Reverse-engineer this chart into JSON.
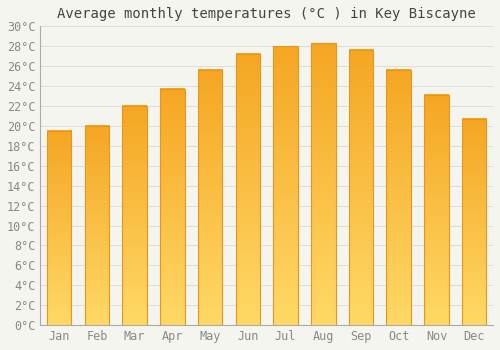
{
  "title": "Average monthly temperatures (°C ) in Key Biscayne",
  "months": [
    "Jan",
    "Feb",
    "Mar",
    "Apr",
    "May",
    "Jun",
    "Jul",
    "Aug",
    "Sep",
    "Oct",
    "Nov",
    "Dec"
  ],
  "values": [
    19.5,
    20.0,
    22.0,
    23.7,
    25.6,
    27.2,
    28.0,
    28.3,
    27.6,
    25.6,
    23.1,
    20.7
  ],
  "bar_color_top": "#F5A623",
  "bar_color_bottom": "#FFD966",
  "ylim": [
    0,
    30
  ],
  "ytick_step": 2,
  "background_color": "#F5F5F0",
  "plot_bg_color": "#F5F5F0",
  "grid_color": "#DDDDDD",
  "title_fontsize": 10,
  "tick_fontsize": 8.5,
  "tick_color": "#888888",
  "bar_width": 0.65,
  "spine_color": "#AAAAAA"
}
